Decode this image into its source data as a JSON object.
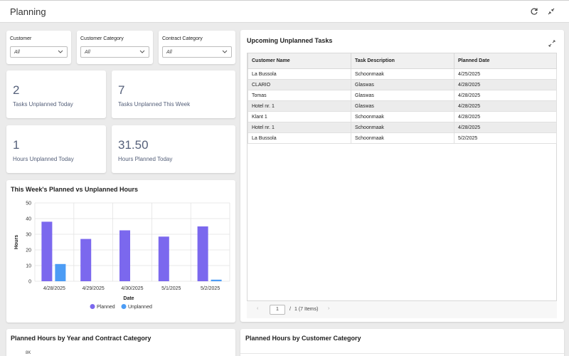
{
  "header": {
    "title": "Planning",
    "refresh_icon": "refresh-icon",
    "collapse_icon": "collapse-icon"
  },
  "filters": [
    {
      "label": "Customer",
      "value": "All"
    },
    {
      "label": "Customer Category",
      "value": "All"
    },
    {
      "label": "Contract Category",
      "value": "All"
    }
  ],
  "kpis": [
    {
      "value": "2",
      "label": "Tasks Unplanned Today"
    },
    {
      "value": "7",
      "label": "Tasks Unplanned This Week"
    },
    {
      "value": "1",
      "label": "Hours Unplanned Today"
    },
    {
      "value": "31.50",
      "label": "Hours Planned Today"
    }
  ],
  "tasks": {
    "title": "Upcoming Unplanned Tasks",
    "columns": [
      "Customer Name",
      "Task Description",
      "Planned Date"
    ],
    "rows": [
      [
        "La Bussola",
        "Schoonmaak",
        "4/25/2025"
      ],
      [
        "CLARIO",
        "Glaswas",
        "4/28/2025"
      ],
      [
        "Tomas",
        "Glaswas",
        "4/28/2025"
      ],
      [
        "Hotel nr. 1",
        "Glaswas",
        "4/28/2025"
      ],
      [
        "Klant 1",
        "Schoonmaak",
        "4/28/2025"
      ],
      [
        "Hotel nr. 1",
        "Schoonmaak",
        "4/28/2025"
      ],
      [
        "La Bussola",
        "Schoonmaak",
        "5/2/2025"
      ]
    ],
    "pager": {
      "page": "1",
      "of": "/",
      "total": "1 (7 Items)"
    }
  },
  "bottom": {
    "left_title": "Planned Hours by Year and Contract Category",
    "left_tick": "8K",
    "right_title": "Planned Hours by Customer Category"
  },
  "colors": {
    "planned": "#7b68ee",
    "unplanned": "#4c9cf5"
  },
  "chart_data": {
    "type": "bar",
    "title": "This Week's Planned vs Unplanned Hours",
    "xlabel": "Date",
    "ylabel": "Hours",
    "ylim": [
      0,
      50
    ],
    "yticks": [
      0,
      10,
      20,
      30,
      40,
      50
    ],
    "categories": [
      "4/28/2025",
      "4/29/2025",
      "4/30/2025",
      "5/1/2025",
      "5/2/2025"
    ],
    "series": [
      {
        "name": "Planned",
        "values": [
          38,
          27,
          32.5,
          28.5,
          35
        ]
      },
      {
        "name": "Unplanned",
        "values": [
          11,
          0,
          0,
          0,
          1
        ]
      }
    ],
    "grid": true,
    "legend": "bottom"
  }
}
